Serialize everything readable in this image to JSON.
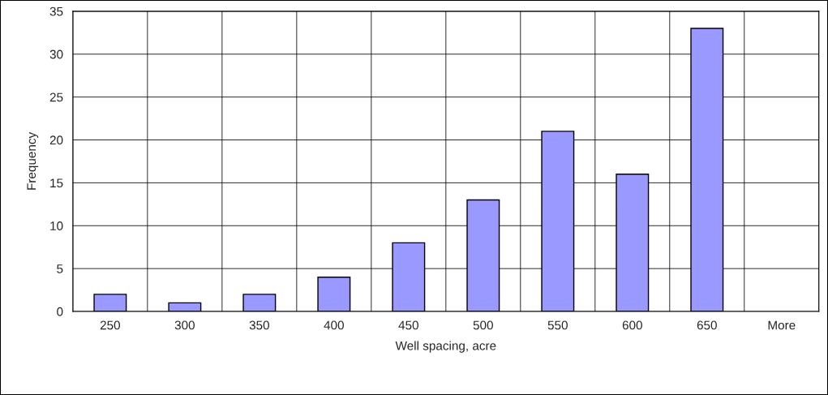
{
  "chart_data": {
    "type": "bar",
    "xlabel": "Well spacing, acre",
    "ylabel": "Frequency",
    "categories": [
      "250",
      "300",
      "350",
      "400",
      "450",
      "500",
      "550",
      "600",
      "650",
      "More"
    ],
    "values": [
      2,
      1,
      2,
      4,
      8,
      13,
      21,
      16,
      33,
      0
    ],
    "color": "#9999ff",
    "ylim": [
      0,
      35
    ],
    "yticks": [
      0,
      5,
      10,
      15,
      20,
      25,
      30,
      35
    ],
    "grid": true
  }
}
